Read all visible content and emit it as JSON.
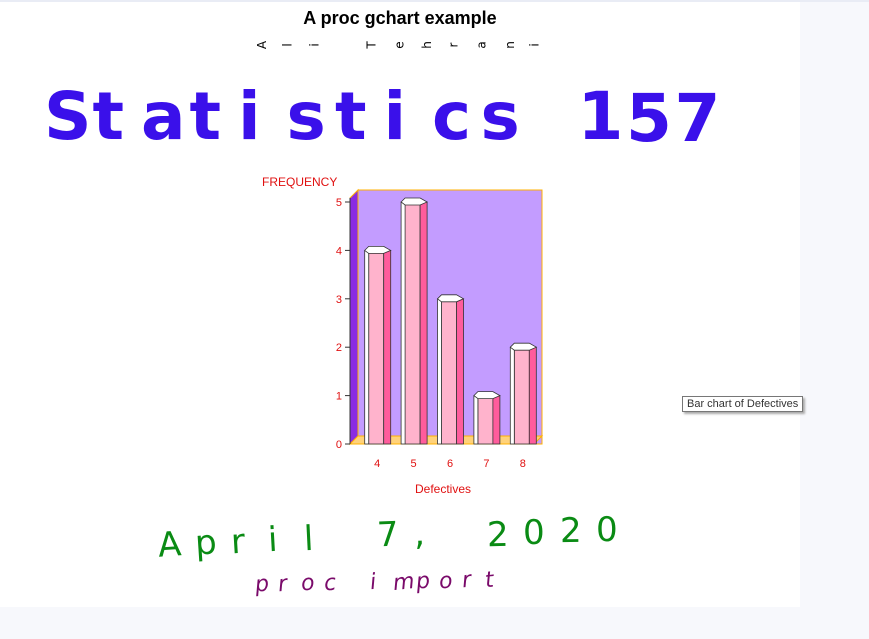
{
  "header": {
    "title": "A proc gchart example",
    "author": "Ali Tehrani",
    "course": "Statistics 157",
    "date": "April 7, 2020",
    "footer": "proc import"
  },
  "tooltip": "Bar chart of Defectives",
  "colors": {
    "course": "#3a10ea",
    "date": "#0a8b14",
    "footer": "#7a0a6a",
    "chart_bg": "#c39cff",
    "chart_wall": "#8a2be2",
    "bar_front": "#ffb3cc",
    "bar_side": "#ff5c9c",
    "bar_top": "#ffffff",
    "axis_text": "#e01010",
    "frame": "#ffb000"
  },
  "chart_data": {
    "type": "bar",
    "categories": [
      "4",
      "5",
      "6",
      "7",
      "8"
    ],
    "values": [
      4,
      5,
      3,
      1,
      2
    ],
    "xlabel": "Defectives",
    "ylabel": "FREQUENCY",
    "ylim": [
      0,
      5
    ],
    "yticks": [
      "0",
      "1",
      "2",
      "3",
      "4",
      "5"
    ],
    "grid": false,
    "style": "3d-prism"
  }
}
